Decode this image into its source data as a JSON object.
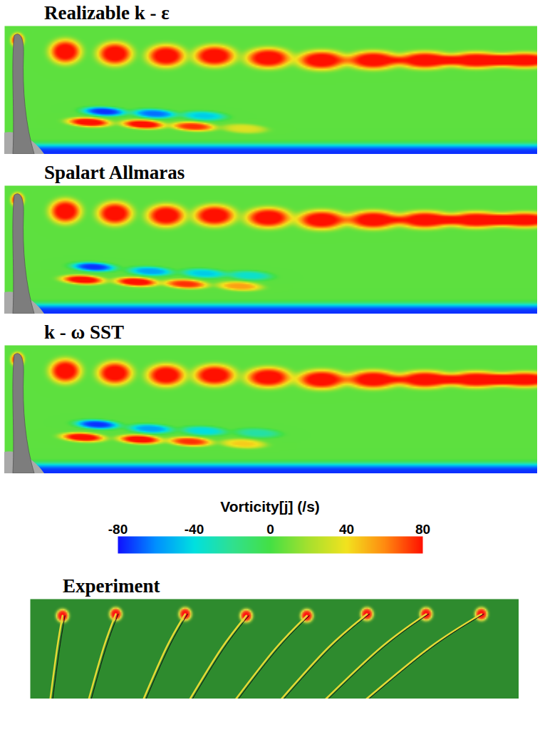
{
  "chart_data": [
    {
      "type": "contour",
      "title": "Realizable k - ε",
      "tick_labels": false,
      "xlim": [
        0,
        10
      ],
      "ylim": [
        0,
        3
      ],
      "background": 5,
      "wall_vorticity": -80,
      "vortices": [
        {
          "x": 0.24,
          "y": 2.67,
          "vorticity": 80
        },
        {
          "x": 1.14,
          "y": 2.4,
          "vorticity": 80
        },
        {
          "x": 2.07,
          "y": 2.35,
          "vorticity": 80
        },
        {
          "x": 3.03,
          "y": 2.3,
          "vorticity": 80
        },
        {
          "x": 3.94,
          "y": 2.3,
          "vorticity": 80
        },
        {
          "x": 4.95,
          "y": 2.25,
          "vorticity": 80
        },
        {
          "x": 5.95,
          "y": 2.2,
          "vorticity": 80
        },
        {
          "x": 6.92,
          "y": 2.2,
          "vorticity": 80
        },
        {
          "x": 7.89,
          "y": 2.2,
          "vorticity": 80
        },
        {
          "x": 8.85,
          "y": 2.2,
          "vorticity": 80
        },
        {
          "x": 9.76,
          "y": 2.2,
          "vorticity": 80
        },
        {
          "x": 1.58,
          "y": 0.75,
          "vorticity": 80
        },
        {
          "x": 2.6,
          "y": 0.7,
          "vorticity": 80
        },
        {
          "x": 3.54,
          "y": 0.65,
          "vorticity": 70
        },
        {
          "x": 4.5,
          "y": 0.6,
          "vorticity": 30
        },
        {
          "x": 1.87,
          "y": 1.0,
          "vorticity": -80
        },
        {
          "x": 2.81,
          "y": 0.95,
          "vorticity": -70
        },
        {
          "x": 3.74,
          "y": 0.9,
          "vorticity": -50
        }
      ]
    },
    {
      "type": "contour",
      "title": "Spalart Allmaras",
      "tick_labels": false,
      "xlim": [
        0,
        10
      ],
      "ylim": [
        0,
        3
      ],
      "background": 5,
      "wall_vorticity": -80,
      "vortices": [
        {
          "x": 0.24,
          "y": 2.67,
          "vorticity": 80
        },
        {
          "x": 1.14,
          "y": 2.4,
          "vorticity": 80
        },
        {
          "x": 2.07,
          "y": 2.35,
          "vorticity": 80
        },
        {
          "x": 3.03,
          "y": 2.3,
          "vorticity": 80
        },
        {
          "x": 3.94,
          "y": 2.3,
          "vorticity": 80
        },
        {
          "x": 4.95,
          "y": 2.25,
          "vorticity": 80
        },
        {
          "x": 5.95,
          "y": 2.2,
          "vorticity": 80
        },
        {
          "x": 6.92,
          "y": 2.2,
          "vorticity": 80
        },
        {
          "x": 7.89,
          "y": 2.2,
          "vorticity": 80
        },
        {
          "x": 8.85,
          "y": 2.2,
          "vorticity": 80
        },
        {
          "x": 9.76,
          "y": 2.2,
          "vorticity": 80
        },
        {
          "x": 1.47,
          "y": 0.8,
          "vorticity": 80
        },
        {
          "x": 2.47,
          "y": 0.75,
          "vorticity": 80
        },
        {
          "x": 3.4,
          "y": 0.7,
          "vorticity": 70
        },
        {
          "x": 4.41,
          "y": 0.65,
          "vorticity": 50
        },
        {
          "x": 1.67,
          "y": 1.1,
          "vorticity": -80
        },
        {
          "x": 2.74,
          "y": 1.0,
          "vorticity": -60
        },
        {
          "x": 3.74,
          "y": 0.95,
          "vorticity": -50
        },
        {
          "x": 4.6,
          "y": 0.9,
          "vorticity": -40
        }
      ]
    },
    {
      "type": "contour",
      "title": "k - ω SST",
      "tick_labels": false,
      "xlim": [
        0,
        10
      ],
      "ylim": [
        0,
        3
      ],
      "background": 5,
      "wall_vorticity": -80,
      "vortices": [
        {
          "x": 0.24,
          "y": 2.67,
          "vorticity": 80
        },
        {
          "x": 1.14,
          "y": 2.4,
          "vorticity": 80
        },
        {
          "x": 2.07,
          "y": 2.35,
          "vorticity": 80
        },
        {
          "x": 3.03,
          "y": 2.3,
          "vorticity": 80
        },
        {
          "x": 3.94,
          "y": 2.3,
          "vorticity": 80
        },
        {
          "x": 4.95,
          "y": 2.25,
          "vorticity": 80
        },
        {
          "x": 5.95,
          "y": 2.2,
          "vorticity": 80
        },
        {
          "x": 6.92,
          "y": 2.2,
          "vorticity": 80
        },
        {
          "x": 7.89,
          "y": 2.2,
          "vorticity": 80
        },
        {
          "x": 8.85,
          "y": 2.2,
          "vorticity": 80
        },
        {
          "x": 9.76,
          "y": 2.2,
          "vorticity": 80
        },
        {
          "x": 1.47,
          "y": 0.85,
          "vorticity": 80
        },
        {
          "x": 2.54,
          "y": 0.8,
          "vorticity": 80
        },
        {
          "x": 3.48,
          "y": 0.75,
          "vorticity": 70
        },
        {
          "x": 4.48,
          "y": 0.7,
          "vorticity": 40
        },
        {
          "x": 1.74,
          "y": 1.15,
          "vorticity": -80
        },
        {
          "x": 2.74,
          "y": 1.05,
          "vorticity": -60
        },
        {
          "x": 3.74,
          "y": 1.0,
          "vorticity": -45
        },
        {
          "x": 4.75,
          "y": 0.95,
          "vorticity": -30
        }
      ]
    },
    {
      "type": "colorbar",
      "label": "Vorticity[j] (/s)",
      "range": [
        -80,
        80
      ],
      "ticks": [
        -80,
        -40,
        0,
        40,
        80
      ]
    },
    {
      "type": "experiment",
      "title": "Experiment",
      "tick_labels": false,
      "xlim": [
        0,
        10
      ],
      "ylim": [
        0,
        3
      ],
      "background": 0,
      "vortices": [
        {
          "x": 0.66,
          "y": 2.5,
          "vorticity": 80
        },
        {
          "x": 1.75,
          "y": 2.55,
          "vorticity": 80
        },
        {
          "x": 3.17,
          "y": 2.55,
          "vorticity": 80
        },
        {
          "x": 4.42,
          "y": 2.5,
          "vorticity": 80
        },
        {
          "x": 5.66,
          "y": 2.5,
          "vorticity": 80
        },
        {
          "x": 6.89,
          "y": 2.55,
          "vorticity": 80
        },
        {
          "x": 8.1,
          "y": 2.55,
          "vorticity": 80
        },
        {
          "x": 9.23,
          "y": 2.55,
          "vorticity": 80
        }
      ]
    }
  ]
}
